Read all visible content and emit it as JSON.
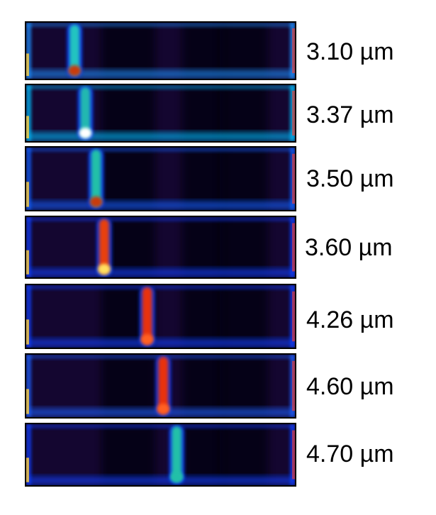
{
  "labels": [
    "3.10 µm",
    "3.37 µm",
    "3.50 µm",
    "3.60 µm",
    "4.26 µm",
    "4.60 µm",
    "4.70 µm"
  ],
  "panels": [
    {
      "mode_position": 0.18,
      "mode_color": "#21c4c0",
      "hotspot_color": "#c83a10",
      "edge_glow": "#1e90ff"
    },
    {
      "mode_position": 0.22,
      "mode_color": "#20b8b0",
      "hotspot_color": "#ffffff",
      "edge_glow": "#00bfff"
    },
    {
      "mode_position": 0.26,
      "mode_color": "#20c0a8",
      "hotspot_color": "#c83a10",
      "edge_glow": "#1060ff"
    },
    {
      "mode_position": 0.29,
      "mode_color": "#e84010",
      "hotspot_color": "#ffe060",
      "edge_glow": "#1040ff"
    },
    {
      "mode_position": 0.45,
      "mode_color": "#e83010",
      "hotspot_color": "#ff6020",
      "edge_glow": "#1040ff"
    },
    {
      "mode_position": 0.51,
      "mode_color": "#e83010",
      "hotspot_color": "#ff6020",
      "edge_glow": "#1e60ff"
    },
    {
      "mode_position": 0.56,
      "mode_color": "#20c0a8",
      "hotspot_color": "#20c0a8",
      "edge_glow": "#1040ff"
    }
  ]
}
